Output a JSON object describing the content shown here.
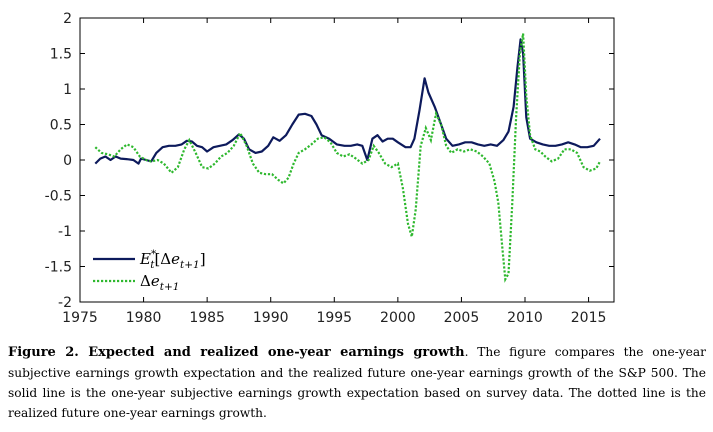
{
  "chart_data": {
    "type": "line",
    "title": "",
    "xlabel": "",
    "ylabel": "",
    "xlim": [
      1975,
      2017
    ],
    "ylim": [
      -2,
      2
    ],
    "x_ticks": [
      1975,
      1980,
      1985,
      1990,
      1995,
      2000,
      2005,
      2010,
      2015
    ],
    "y_ticks": [
      -2,
      -1.5,
      -1,
      -0.5,
      0,
      0.5,
      1,
      1.5,
      2
    ],
    "x_tick_labels": [
      "1975",
      "1980",
      "1985",
      "1990",
      "1995",
      "2000",
      "2005",
      "2010",
      "2015"
    ],
    "y_tick_labels": [
      "-2",
      "-1.5",
      "-1",
      "-0.5",
      "0",
      "0.5",
      "1",
      "1.5",
      "2"
    ],
    "grid": false,
    "legend": "bottom-left",
    "series": [
      {
        "name": "E*_t[Δe_{t+1}]",
        "style": "solid",
        "color": "#0d1a5c",
        "points": [
          [
            1976.2,
            -0.05
          ],
          [
            1976.6,
            0.02
          ],
          [
            1977.0,
            0.05
          ],
          [
            1977.4,
            0.0
          ],
          [
            1977.8,
            0.05
          ],
          [
            1978.2,
            0.02
          ],
          [
            1978.8,
            0.01
          ],
          [
            1979.2,
            0.0
          ],
          [
            1979.6,
            -0.05
          ],
          [
            1979.8,
            0.02
          ],
          [
            1980.2,
            0.0
          ],
          [
            1980.6,
            -0.02
          ],
          [
            1981.0,
            0.1
          ],
          [
            1981.5,
            0.18
          ],
          [
            1982.0,
            0.2
          ],
          [
            1982.5,
            0.2
          ],
          [
            1983.0,
            0.22
          ],
          [
            1983.4,
            0.27
          ],
          [
            1983.8,
            0.26
          ],
          [
            1984.2,
            0.2
          ],
          [
            1984.6,
            0.18
          ],
          [
            1985.0,
            0.12
          ],
          [
            1985.5,
            0.18
          ],
          [
            1986.0,
            0.2
          ],
          [
            1986.5,
            0.22
          ],
          [
            1987.0,
            0.28
          ],
          [
            1987.5,
            0.36
          ],
          [
            1987.9,
            0.3
          ],
          [
            1988.3,
            0.15
          ],
          [
            1988.8,
            0.1
          ],
          [
            1989.3,
            0.12
          ],
          [
            1989.8,
            0.2
          ],
          [
            1990.2,
            0.32
          ],
          [
            1990.7,
            0.27
          ],
          [
            1991.2,
            0.35
          ],
          [
            1991.7,
            0.5
          ],
          [
            1992.2,
            0.64
          ],
          [
            1992.7,
            0.65
          ],
          [
            1993.2,
            0.62
          ],
          [
            1993.6,
            0.5
          ],
          [
            1994.0,
            0.35
          ],
          [
            1994.6,
            0.3
          ],
          [
            1995.2,
            0.22
          ],
          [
            1995.8,
            0.2
          ],
          [
            1996.3,
            0.2
          ],
          [
            1996.8,
            0.22
          ],
          [
            1997.2,
            0.2
          ],
          [
            1997.6,
            0.0
          ],
          [
            1998.0,
            0.3
          ],
          [
            1998.4,
            0.35
          ],
          [
            1998.8,
            0.26
          ],
          [
            1999.2,
            0.3
          ],
          [
            1999.6,
            0.3
          ],
          [
            2000.0,
            0.25
          ],
          [
            2000.6,
            0.18
          ],
          [
            2001.0,
            0.18
          ],
          [
            2001.3,
            0.3
          ],
          [
            2001.7,
            0.7
          ],
          [
            2002.1,
            1.15
          ],
          [
            2002.4,
            0.95
          ],
          [
            2002.9,
            0.75
          ],
          [
            2003.4,
            0.5
          ],
          [
            2003.8,
            0.3
          ],
          [
            2004.3,
            0.2
          ],
          [
            2004.8,
            0.22
          ],
          [
            2005.3,
            0.25
          ],
          [
            2005.8,
            0.25
          ],
          [
            2006.3,
            0.22
          ],
          [
            2006.8,
            0.2
          ],
          [
            2007.3,
            0.22
          ],
          [
            2007.8,
            0.2
          ],
          [
            2008.3,
            0.28
          ],
          [
            2008.7,
            0.4
          ],
          [
            2009.1,
            0.75
          ],
          [
            2009.4,
            1.3
          ],
          [
            2009.65,
            1.7
          ],
          [
            2009.85,
            1.5
          ],
          [
            2010.1,
            0.6
          ],
          [
            2010.4,
            0.3
          ],
          [
            2010.9,
            0.25
          ],
          [
            2011.4,
            0.22
          ],
          [
            2011.9,
            0.2
          ],
          [
            2012.4,
            0.2
          ],
          [
            2012.9,
            0.22
          ],
          [
            2013.4,
            0.25
          ],
          [
            2013.9,
            0.22
          ],
          [
            2014.4,
            0.18
          ],
          [
            2014.9,
            0.18
          ],
          [
            2015.4,
            0.2
          ],
          [
            2015.9,
            0.3
          ]
        ]
      },
      {
        "name": "Δe_{t+1}",
        "style": "dotted",
        "color": "#2eb82e",
        "points": [
          [
            1976.2,
            0.18
          ],
          [
            1976.7,
            0.1
          ],
          [
            1977.2,
            0.08
          ],
          [
            1977.7,
            0.05
          ],
          [
            1978.2,
            0.15
          ],
          [
            1978.7,
            0.22
          ],
          [
            1979.2,
            0.18
          ],
          [
            1979.7,
            0.05
          ],
          [
            1980.2,
            0.0
          ],
          [
            1980.6,
            -0.02
          ],
          [
            1981.1,
            0.0
          ],
          [
            1981.6,
            -0.05
          ],
          [
            1982.2,
            -0.18
          ],
          [
            1982.7,
            -0.1
          ],
          [
            1983.2,
            0.15
          ],
          [
            1983.6,
            0.28
          ],
          [
            1984.1,
            0.1
          ],
          [
            1984.6,
            -0.1
          ],
          [
            1985.1,
            -0.12
          ],
          [
            1985.6,
            -0.05
          ],
          [
            1986.1,
            0.05
          ],
          [
            1986.6,
            0.1
          ],
          [
            1987.1,
            0.2
          ],
          [
            1987.6,
            0.38
          ],
          [
            1988.1,
            0.2
          ],
          [
            1988.6,
            -0.05
          ],
          [
            1989.1,
            -0.18
          ],
          [
            1989.6,
            -0.2
          ],
          [
            1990.1,
            -0.2
          ],
          [
            1990.6,
            -0.28
          ],
          [
            1991.0,
            -0.33
          ],
          [
            1991.4,
            -0.25
          ],
          [
            1991.8,
            -0.05
          ],
          [
            1992.2,
            0.1
          ],
          [
            1992.7,
            0.15
          ],
          [
            1993.2,
            0.22
          ],
          [
            1993.7,
            0.3
          ],
          [
            1994.2,
            0.32
          ],
          [
            1994.7,
            0.25
          ],
          [
            1995.2,
            0.1
          ],
          [
            1995.7,
            0.05
          ],
          [
            1996.2,
            0.08
          ],
          [
            1996.7,
            0.02
          ],
          [
            1997.2,
            -0.05
          ],
          [
            1997.7,
            0.0
          ],
          [
            1998.1,
            0.2
          ],
          [
            1998.5,
            0.1
          ],
          [
            1999.0,
            -0.05
          ],
          [
            1999.5,
            -0.1
          ],
          [
            2000.0,
            -0.05
          ],
          [
            2000.4,
            -0.4
          ],
          [
            2000.8,
            -0.9
          ],
          [
            2001.1,
            -1.08
          ],
          [
            2001.4,
            -0.7
          ],
          [
            2001.8,
            0.2
          ],
          [
            2002.2,
            0.45
          ],
          [
            2002.6,
            0.28
          ],
          [
            2003.0,
            0.65
          ],
          [
            2003.4,
            0.5
          ],
          [
            2003.8,
            0.2
          ],
          [
            2004.2,
            0.1
          ],
          [
            2004.7,
            0.15
          ],
          [
            2005.2,
            0.12
          ],
          [
            2005.7,
            0.15
          ],
          [
            2006.2,
            0.12
          ],
          [
            2006.7,
            0.05
          ],
          [
            2007.2,
            -0.05
          ],
          [
            2007.6,
            -0.3
          ],
          [
            2007.9,
            -0.6
          ],
          [
            2008.2,
            -1.2
          ],
          [
            2008.45,
            -1.68
          ],
          [
            2008.7,
            -1.6
          ],
          [
            2009.0,
            -0.6
          ],
          [
            2009.3,
            0.6
          ],
          [
            2009.6,
            1.5
          ],
          [
            2009.85,
            1.78
          ],
          [
            2010.1,
            0.9
          ],
          [
            2010.4,
            0.35
          ],
          [
            2010.8,
            0.15
          ],
          [
            2011.2,
            0.12
          ],
          [
            2011.6,
            0.05
          ],
          [
            2012.1,
            -0.02
          ],
          [
            2012.6,
            0.02
          ],
          [
            2013.1,
            0.15
          ],
          [
            2013.6,
            0.15
          ],
          [
            2014.1,
            0.1
          ],
          [
            2014.6,
            -0.1
          ],
          [
            2015.1,
            -0.15
          ],
          [
            2015.6,
            -0.12
          ],
          [
            2015.9,
            -0.02
          ]
        ]
      }
    ]
  },
  "legend": {
    "entry1": {
      "base": "E",
      "sup": "*",
      "sub_t": "t",
      "bracket_open": "[Δ",
      "e": "e",
      "sub": "t+1",
      "bracket_close": "]"
    },
    "entry2": {
      "delta": "Δ",
      "e": "e",
      "sub": "t+1"
    }
  },
  "caption": {
    "title": "Figure 2.  Expected and realized one-year earnings growth",
    "body": ".  The figure compares the one-year subjective earnings growth expectation and the realized future one-year earnings growth of the S&P 500. The solid line is the one-year subjective earnings growth expectation based on survey data. The dotted line is the realized future one-year earnings growth."
  }
}
